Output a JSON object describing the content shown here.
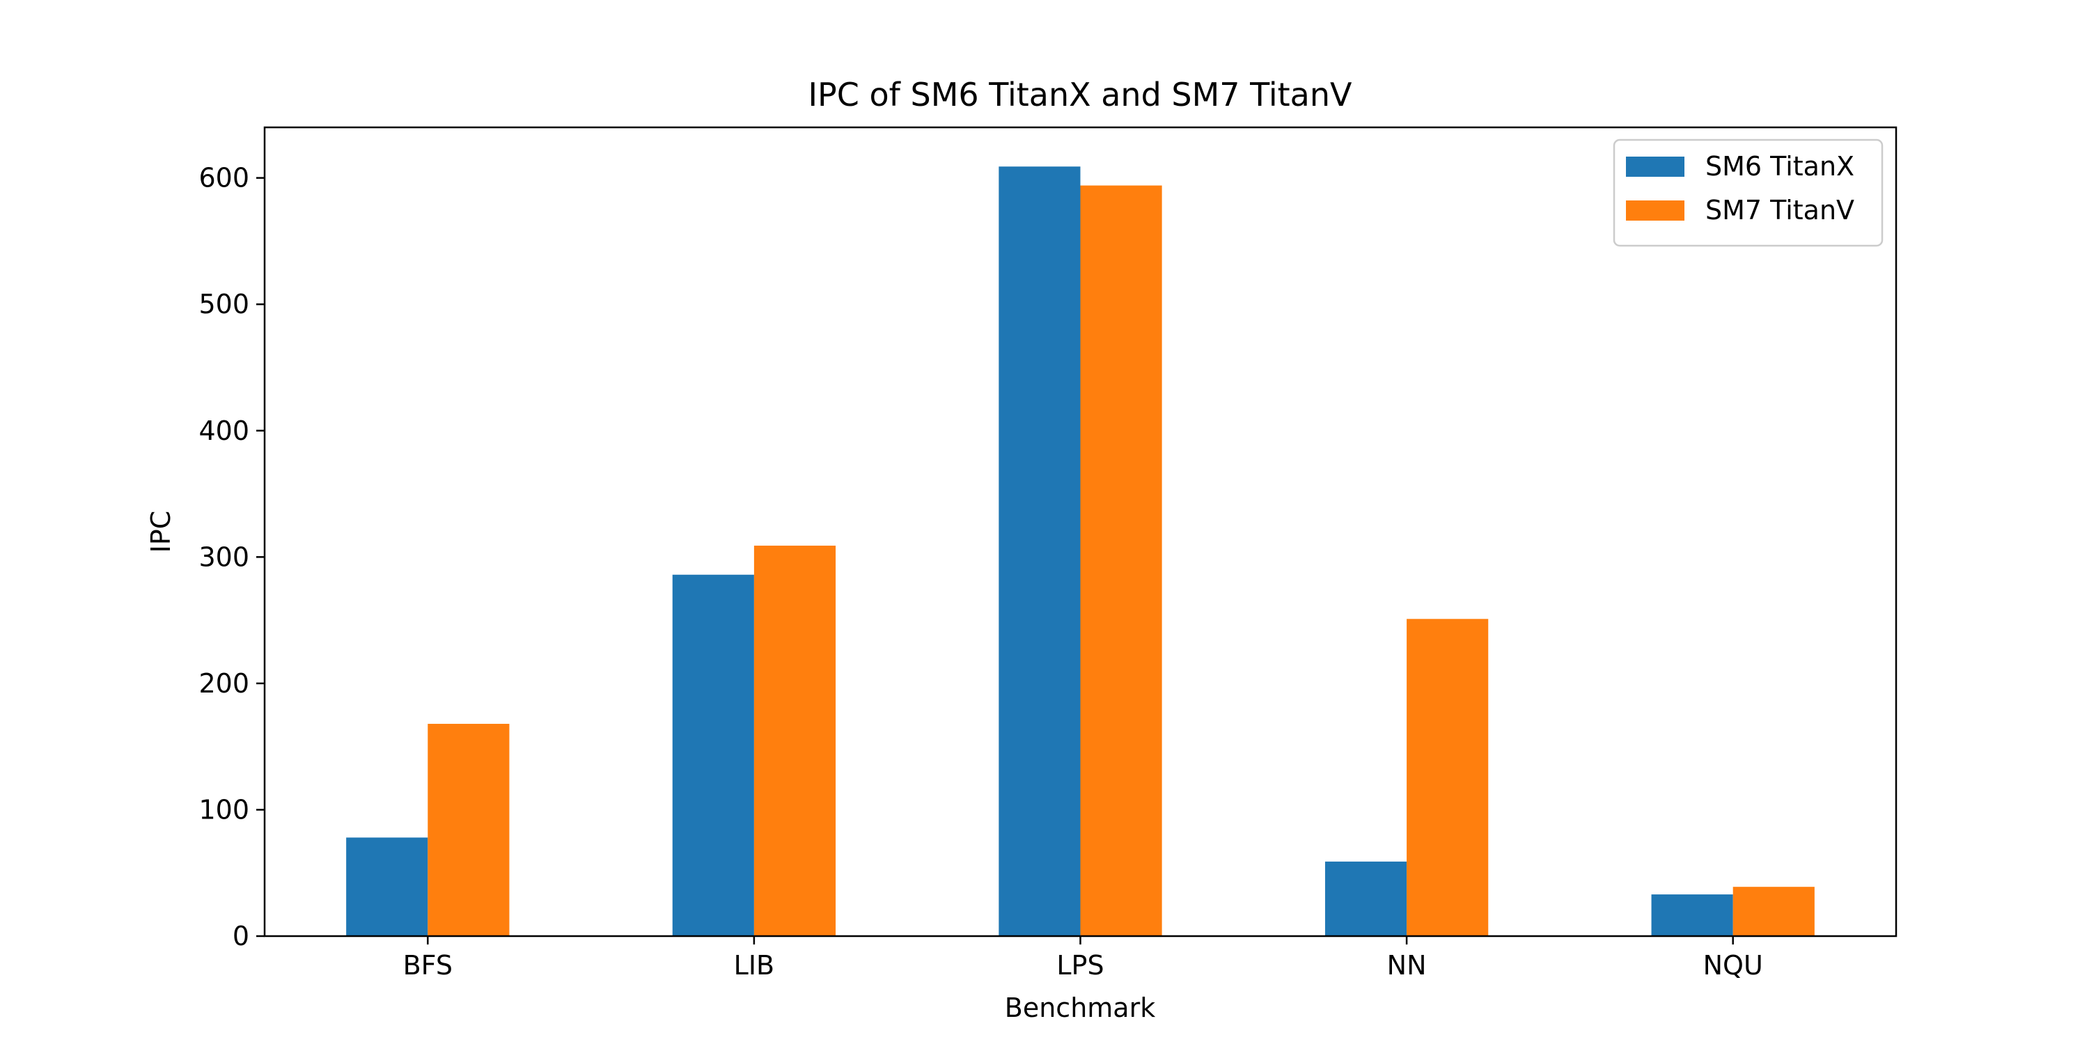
{
  "chart_data": {
    "type": "bar",
    "title": "IPC of SM6 TitanX and SM7 TitanV",
    "xlabel": "Benchmark",
    "ylabel": "IPC",
    "categories": [
      "BFS",
      "LIB",
      "LPS",
      "NN",
      "NQU"
    ],
    "series": [
      {
        "name": "SM6 TitanX",
        "color": "#1f77b4",
        "values": [
          78,
          286,
          609,
          59,
          33
        ]
      },
      {
        "name": "SM7 TitanV",
        "color": "#ff7f0e",
        "values": [
          168,
          309,
          594,
          251,
          39
        ]
      }
    ],
    "ylim": [
      0,
      640
    ],
    "yticks": [
      0,
      100,
      200,
      300,
      400,
      500,
      600
    ],
    "grid": false,
    "legend_position": "top-right"
  }
}
